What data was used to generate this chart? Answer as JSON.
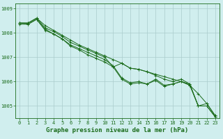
{
  "x": [
    0,
    1,
    2,
    3,
    4,
    5,
    6,
    7,
    8,
    9,
    10,
    11,
    12,
    13,
    14,
    15,
    16,
    17,
    18,
    19,
    20,
    21,
    22,
    23
  ],
  "lines": [
    [
      1008.4,
      1008.4,
      1008.6,
      1008.3,
      1008.1,
      1007.9,
      1007.7,
      1007.5,
      1007.35,
      1007.2,
      1007.05,
      1006.9,
      1006.75,
      1006.55,
      1006.5,
      1006.4,
      1006.3,
      1006.2,
      1006.1,
      1006.0,
      1005.85,
      1005.5,
      1005.1,
      1004.6
    ],
    [
      1008.4,
      1008.4,
      1008.6,
      1008.2,
      1008.05,
      1007.85,
      1007.6,
      1007.45,
      1007.3,
      1007.15,
      1007.0,
      1006.6,
      1006.75,
      1006.55,
      1006.5,
      1006.4,
      1006.25,
      1006.1,
      1006.0,
      1006.1,
      1005.9,
      1005.0,
      1005.1,
      1004.6
    ],
    [
      1008.4,
      1008.35,
      1008.55,
      1008.15,
      1007.95,
      1007.75,
      1007.5,
      1007.35,
      1007.2,
      1007.05,
      1006.9,
      1006.65,
      1006.15,
      1005.95,
      1006.0,
      1005.9,
      1006.1,
      1005.85,
      1005.9,
      1006.0,
      1005.9,
      1005.0,
      1005.0,
      1004.55
    ],
    [
      1008.35,
      1008.35,
      1008.55,
      1008.1,
      1007.95,
      1007.75,
      1007.45,
      1007.3,
      1007.1,
      1006.95,
      1006.8,
      1006.6,
      1006.1,
      1005.9,
      1005.95,
      1005.9,
      1006.05,
      1005.8,
      1005.9,
      1006.0,
      1005.85,
      1005.0,
      1005.0,
      1004.55
    ]
  ],
  "line_color": "#1a6b1a",
  "marker": "+",
  "markersize": 3,
  "linewidth": 0.7,
  "ylim": [
    1004.5,
    1009.2
  ],
  "yticks": [
    1005,
    1006,
    1007,
    1008,
    1009
  ],
  "xticks": [
    0,
    1,
    2,
    3,
    4,
    5,
    6,
    7,
    8,
    9,
    10,
    11,
    12,
    13,
    14,
    15,
    16,
    17,
    18,
    19,
    20,
    21,
    22,
    23
  ],
  "xlabel": "Graphe pression niveau de la mer (hPa)",
  "bg_color": "#d0eeee",
  "grid_color": "#aacccc",
  "text_color": "#1a6b1a",
  "tick_fontsize": 5.0,
  "xlabel_fontsize": 6.5
}
